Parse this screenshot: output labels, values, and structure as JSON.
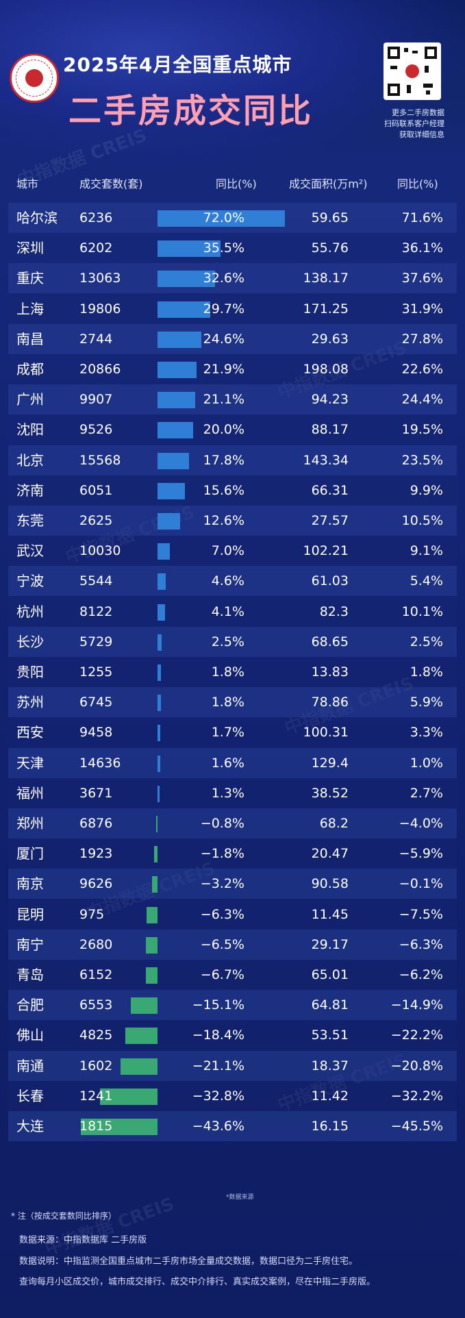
{
  "header": {
    "title_line1": "2025年4月全国重点城市",
    "title_line2": "二手房成交同比",
    "side_note": [
      "更多二手房数据",
      "扫码联系客户经理",
      "获取详细信息"
    ]
  },
  "watermark": "中指数据 CREIS",
  "columns": {
    "city": "城市",
    "count": "成交套数(套)",
    "count_yoy": "同比(%)",
    "area": "成交面积(万m²)",
    "area_yoy": "同比(%)"
  },
  "chart_data": {
    "type": "table",
    "bar_colors": {
      "positive": "#2f7fd6",
      "negative": "#3aa873"
    },
    "rows": [
      {
        "city": "哈尔滨",
        "count": "6236",
        "yoy": 72.0,
        "yoy_label": "72.0%",
        "area": "59.65",
        "area_yoy": "71.6%"
      },
      {
        "city": "深圳",
        "count": "6202",
        "yoy": 35.5,
        "yoy_label": "35.5%",
        "area": "55.76",
        "area_yoy": "36.1%"
      },
      {
        "city": "重庆",
        "count": "13063",
        "yoy": 32.6,
        "yoy_label": "32.6%",
        "area": "138.17",
        "area_yoy": "37.6%"
      },
      {
        "city": "上海",
        "count": "19806",
        "yoy": 29.7,
        "yoy_label": "29.7%",
        "area": "171.25",
        "area_yoy": "31.9%"
      },
      {
        "city": "南昌",
        "count": "2744",
        "yoy": 24.6,
        "yoy_label": "24.6%",
        "area": "29.63",
        "area_yoy": "27.8%"
      },
      {
        "city": "成都",
        "count": "20866",
        "yoy": 21.9,
        "yoy_label": "21.9%",
        "area": "198.08",
        "area_yoy": "22.6%"
      },
      {
        "city": "广州",
        "count": "9907",
        "yoy": 21.1,
        "yoy_label": "21.1%",
        "area": "94.23",
        "area_yoy": "24.4%"
      },
      {
        "city": "沈阳",
        "count": "9526",
        "yoy": 20.0,
        "yoy_label": "20.0%",
        "area": "88.17",
        "area_yoy": "19.5%"
      },
      {
        "city": "北京",
        "count": "15568",
        "yoy": 17.8,
        "yoy_label": "17.8%",
        "area": "143.34",
        "area_yoy": "23.5%"
      },
      {
        "city": "济南",
        "count": "6051",
        "yoy": 15.6,
        "yoy_label": "15.6%",
        "area": "66.31",
        "area_yoy": "9.9%"
      },
      {
        "city": "东莞",
        "count": "2625",
        "yoy": 12.6,
        "yoy_label": "12.6%",
        "area": "27.57",
        "area_yoy": "10.5%"
      },
      {
        "city": "武汉",
        "count": "10030",
        "yoy": 7.0,
        "yoy_label": "7.0%",
        "area": "102.21",
        "area_yoy": "9.1%"
      },
      {
        "city": "宁波",
        "count": "5544",
        "yoy": 4.6,
        "yoy_label": "4.6%",
        "area": "61.03",
        "area_yoy": "5.4%"
      },
      {
        "city": "杭州",
        "count": "8122",
        "yoy": 4.1,
        "yoy_label": "4.1%",
        "area": "82.3",
        "area_yoy": "10.1%"
      },
      {
        "city": "长沙",
        "count": "5729",
        "yoy": 2.5,
        "yoy_label": "2.5%",
        "area": "68.65",
        "area_yoy": "2.5%"
      },
      {
        "city": "贵阳",
        "count": "1255",
        "yoy": 1.8,
        "yoy_label": "1.8%",
        "area": "13.83",
        "area_yoy": "1.8%"
      },
      {
        "city": "苏州",
        "count": "6745",
        "yoy": 1.8,
        "yoy_label": "1.8%",
        "area": "78.86",
        "area_yoy": "5.9%"
      },
      {
        "city": "西安",
        "count": "9458",
        "yoy": 1.7,
        "yoy_label": "1.7%",
        "area": "100.31",
        "area_yoy": "3.3%"
      },
      {
        "city": "天津",
        "count": "14636",
        "yoy": 1.6,
        "yoy_label": "1.6%",
        "area": "129.4",
        "area_yoy": "1.0%"
      },
      {
        "city": "福州",
        "count": "3671",
        "yoy": 1.3,
        "yoy_label": "1.3%",
        "area": "38.52",
        "area_yoy": "2.7%"
      },
      {
        "city": "郑州",
        "count": "6876",
        "yoy": -0.8,
        "yoy_label": "−0.8%",
        "area": "68.2",
        "area_yoy": "−4.0%"
      },
      {
        "city": "厦门",
        "count": "1923",
        "yoy": -1.8,
        "yoy_label": "−1.8%",
        "area": "20.47",
        "area_yoy": "−5.9%"
      },
      {
        "city": "南京",
        "count": "9626",
        "yoy": -3.2,
        "yoy_label": "−3.2%",
        "area": "90.58",
        "area_yoy": "−0.1%"
      },
      {
        "city": "昆明",
        "count": "975",
        "yoy": -6.3,
        "yoy_label": "−6.3%",
        "area": "11.45",
        "area_yoy": "−7.5%"
      },
      {
        "city": "南宁",
        "count": "2680",
        "yoy": -6.5,
        "yoy_label": "−6.5%",
        "area": "29.17",
        "area_yoy": "−6.3%"
      },
      {
        "city": "青岛",
        "count": "6152",
        "yoy": -6.7,
        "yoy_label": "−6.7%",
        "area": "65.01",
        "area_yoy": "−6.2%"
      },
      {
        "city": "合肥",
        "count": "6553",
        "yoy": -15.1,
        "yoy_label": "−15.1%",
        "area": "64.81",
        "area_yoy": "−14.9%"
      },
      {
        "city": "佛山",
        "count": "4825",
        "yoy": -18.4,
        "yoy_label": "−18.4%",
        "area": "53.51",
        "area_yoy": "−22.2%"
      },
      {
        "city": "南通",
        "count": "1602",
        "yoy": -21.1,
        "yoy_label": "−21.1%",
        "area": "18.37",
        "area_yoy": "−20.8%"
      },
      {
        "city": "长春",
        "count": "1241",
        "yoy": -32.8,
        "yoy_label": "−32.8%",
        "area": "11.42",
        "area_yoy": "−32.2%"
      },
      {
        "city": "大连",
        "count": "1815",
        "yoy": -43.6,
        "yoy_label": "−43.6%",
        "area": "16.15",
        "area_yoy": "−45.5%"
      }
    ]
  },
  "footer": {
    "source_tag": "*数据来源",
    "note": "* 注（按成交套数同比排序）",
    "source": "数据来源：中指数据库 二手房版",
    "desc": "数据说明：中指监测全国重点城市二手房市场全量成交数据，数据口径为二手房住宅。",
    "query": "查询每月小区成交价，城市成交排行、成交中介排行、真实成交案例，尽在中指二手房版。"
  }
}
